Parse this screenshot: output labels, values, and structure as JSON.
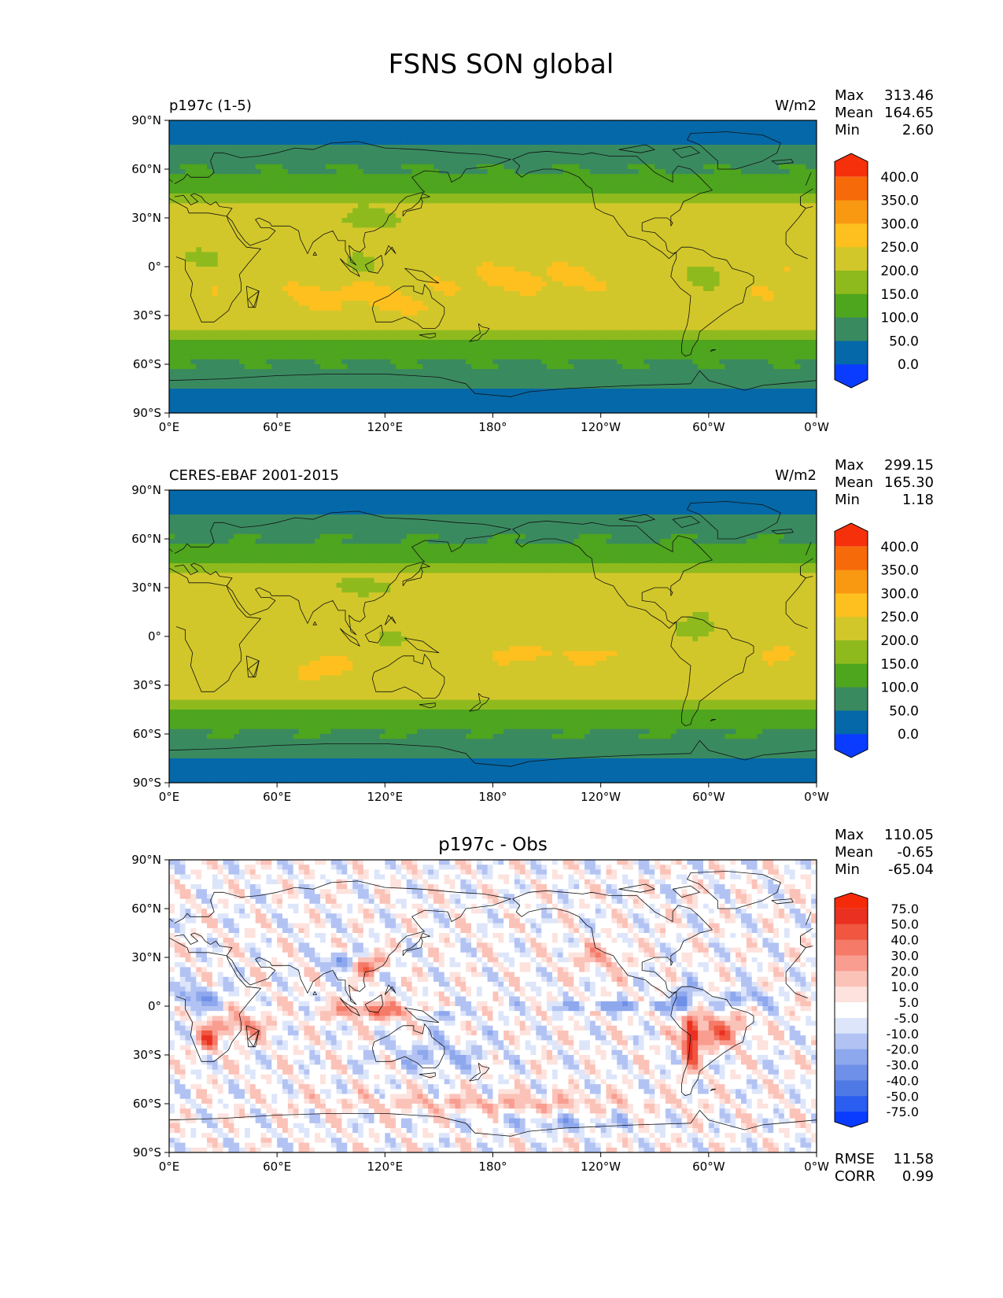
{
  "figure": {
    "title": "FSNS SON global"
  },
  "axes": {
    "lat_ticks": [
      {
        "value": 90,
        "label": "90°N"
      },
      {
        "value": 60,
        "label": "60°N"
      },
      {
        "value": 30,
        "label": "30°N"
      },
      {
        "value": 0,
        "label": "0°"
      },
      {
        "value": -30,
        "label": "30°S"
      },
      {
        "value": -60,
        "label": "60°S"
      },
      {
        "value": -90,
        "label": "90°S"
      }
    ],
    "lon_ticks": [
      {
        "value": 0,
        "label": "0°E"
      },
      {
        "value": 60,
        "label": "60°E"
      },
      {
        "value": 120,
        "label": "120°E"
      },
      {
        "value": 180,
        "label": "180°"
      },
      {
        "value": 240,
        "label": "120°W"
      },
      {
        "value": 300,
        "label": "60°W"
      },
      {
        "value": 360,
        "label": "0°W"
      }
    ]
  },
  "chart_data": [
    {
      "type": "heatmap",
      "title_left": "p197c (1-5)",
      "title_center": "",
      "units": "W/m2",
      "stats": [
        {
          "label": "Max",
          "value": "313.46"
        },
        {
          "label": "Mean",
          "value": "164.65"
        },
        {
          "label": "Min",
          "value": "2.60"
        }
      ],
      "colorbar": {
        "levels": [
          "0.0",
          "50.0",
          "100.0",
          "150.0",
          "200.0",
          "250.0",
          "300.0",
          "350.0",
          "400.0"
        ],
        "colors": [
          "#0a3cff",
          "#0568a8",
          "#3a8a60",
          "#4ea51e",
          "#8fba1e",
          "#d2c72a",
          "#fdc01e",
          "#f99912",
          "#f76a0a",
          "#f5300a"
        ],
        "extend": "both"
      },
      "field": "model"
    },
    {
      "type": "heatmap",
      "title_left": "CERES-EBAF 2001-2015",
      "title_center": "",
      "units": "W/m2",
      "stats": [
        {
          "label": "Max",
          "value": "299.15"
        },
        {
          "label": "Mean",
          "value": "165.30"
        },
        {
          "label": "Min",
          "value": "1.18"
        }
      ],
      "colorbar": {
        "levels": [
          "0.0",
          "50.0",
          "100.0",
          "150.0",
          "200.0",
          "250.0",
          "300.0",
          "350.0",
          "400.0"
        ],
        "colors": [
          "#0a3cff",
          "#0568a8",
          "#3a8a60",
          "#4ea51e",
          "#8fba1e",
          "#d2c72a",
          "#fdc01e",
          "#f99912",
          "#f76a0a",
          "#f5300a"
        ],
        "extend": "both"
      },
      "field": "obs"
    },
    {
      "type": "heatmap",
      "title_left": "",
      "title_center": "p197c - Obs",
      "units": "",
      "stats": [
        {
          "label": "Max",
          "value": "110.05"
        },
        {
          "label": "Mean",
          "value": "-0.65"
        },
        {
          "label": "Min",
          "value": "-65.04"
        }
      ],
      "colorbar": {
        "levels": [
          "-75.0",
          "-50.0",
          "-40.0",
          "-30.0",
          "-20.0",
          "-10.0",
          "-5.0",
          "5.0",
          "10.0",
          "20.0",
          "30.0",
          "40.0",
          "50.0",
          "75.0"
        ],
        "colors": [
          "#0a3cff",
          "#2a5df0",
          "#4f7ae6",
          "#6f90e8",
          "#8ea8ee",
          "#b2c3f3",
          "#dde5fa",
          "#ffffff",
          "#fde2dd",
          "#fbc2b8",
          "#f99d90",
          "#f57a68",
          "#f05640",
          "#ea3020",
          "#f52a08"
        ],
        "extend": "both"
      },
      "metrics": [
        {
          "label": "RMSE",
          "value": "11.58"
        },
        {
          "label": "CORR",
          "value": "0.99"
        }
      ],
      "field": "diff"
    }
  ]
}
